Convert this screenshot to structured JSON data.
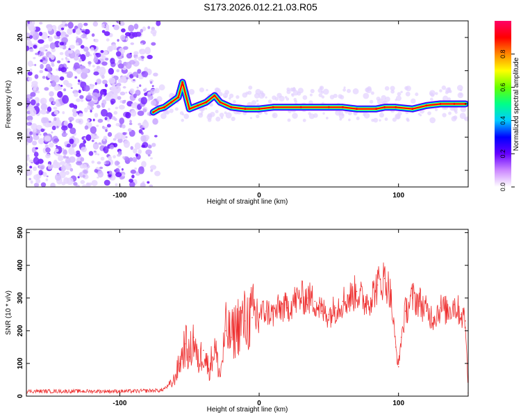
{
  "title": "S173.2026.012.21.03.R05",
  "chart_data": [
    {
      "type": "heatmap",
      "xlabel": "Height of straight line (km)",
      "ylabel": "Frequency (Hz)",
      "xlim": [
        -167,
        150
      ],
      "ylim": [
        -25,
        25
      ],
      "x_ticks": [
        -100,
        0,
        100
      ],
      "y_ticks": [
        -20,
        -10,
        0,
        10,
        20
      ],
      "colorbar": {
        "label": "Normalized spectral amplitude",
        "range": [
          0,
          1
        ],
        "ticks": [
          0.0,
          0.2,
          0.4,
          0.6,
          0.8
        ],
        "colors": [
          "#ffffff",
          "#cc88ff",
          "#6600ff",
          "#0000ff",
          "#00ccff",
          "#00ff88",
          "#66ff00",
          "#ffff00",
          "#ff8800",
          "#ff0000",
          "#ff0066"
        ]
      },
      "ridge": [
        {
          "x": -76,
          "freq": -2.5
        },
        {
          "x": -72,
          "freq": -1.5
        },
        {
          "x": -68,
          "freq": -1.0
        },
        {
          "x": -63,
          "freq": 0.5
        },
        {
          "x": -58,
          "freq": 2.0
        },
        {
          "x": -55,
          "freq": 6.5
        },
        {
          "x": -50,
          "freq": -1.5
        },
        {
          "x": -44,
          "freq": -0.5
        },
        {
          "x": -38,
          "freq": 0.5
        },
        {
          "x": -32,
          "freq": 2.5
        },
        {
          "x": -28,
          "freq": 0.5
        },
        {
          "x": -20,
          "freq": -1.0
        },
        {
          "x": -10,
          "freq": -1.5
        },
        {
          "x": 0,
          "freq": -1.5
        },
        {
          "x": 10,
          "freq": -1.0
        },
        {
          "x": 30,
          "freq": -1.0
        },
        {
          "x": 50,
          "freq": -1.0
        },
        {
          "x": 60,
          "freq": -1.0
        },
        {
          "x": 70,
          "freq": -1.5
        },
        {
          "x": 84,
          "freq": -1.5
        },
        {
          "x": 90,
          "freq": -1.0
        },
        {
          "x": 98,
          "freq": -1.0
        },
        {
          "x": 110,
          "freq": -1.5
        },
        {
          "x": 120,
          "freq": -0.5
        },
        {
          "x": 130,
          "freq": 0.0
        },
        {
          "x": 140,
          "freq": 0.0
        },
        {
          "x": 148,
          "freq": 0.0
        }
      ]
    },
    {
      "type": "line",
      "xlabel": "Height of straight line (km)",
      "ylabel": "SNR (10 * v/v)",
      "xlim": [
        -167,
        150
      ],
      "ylim": [
        0,
        510
      ],
      "x_ticks": [
        -100,
        0,
        100
      ],
      "y_ticks": [
        0,
        100,
        200,
        300,
        400,
        500
      ],
      "color": "#ee3030",
      "x": [
        -167,
        -150,
        -130,
        -110,
        -90,
        -70,
        -62,
        -57,
        -53,
        -50,
        -47,
        -44,
        -40,
        -36,
        -32,
        -28,
        -24,
        -20,
        -15,
        -10,
        -5,
        0,
        5,
        10,
        15,
        20,
        25,
        30,
        35,
        40,
        45,
        50,
        55,
        60,
        65,
        70,
        75,
        80,
        85,
        90,
        94,
        98,
        100,
        102,
        105,
        110,
        115,
        120,
        125,
        130,
        135,
        140,
        145,
        148,
        150
      ],
      "y": [
        15,
        15,
        15,
        15,
        15,
        18,
        40,
        100,
        160,
        120,
        180,
        100,
        140,
        80,
        150,
        60,
        200,
        180,
        220,
        230,
        240,
        250,
        260,
        250,
        270,
        270,
        290,
        300,
        300,
        290,
        260,
        250,
        270,
        290,
        300,
        320,
        290,
        300,
        340,
        360,
        320,
        150,
        90,
        180,
        260,
        300,
        290,
        260,
        240,
        270,
        260,
        280,
        250,
        230,
        10
      ]
    }
  ]
}
